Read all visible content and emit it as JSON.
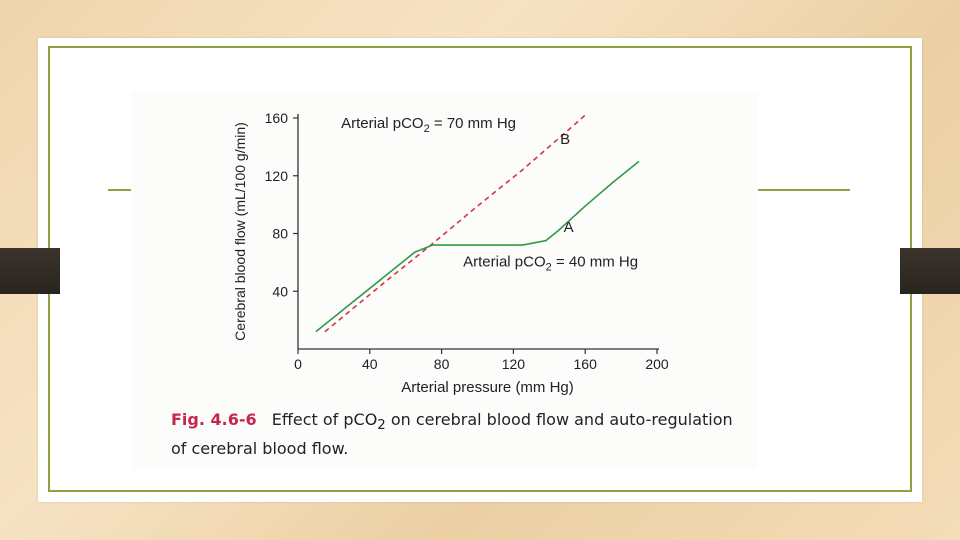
{
  "chart_data": {
    "type": "line",
    "title": "",
    "xlabel": "Arterial pressure (mm Hg)",
    "ylabel": "Cerebral blood flow (mL/100 g/min)",
    "xlim": [
      0,
      200
    ],
    "ylim": [
      0,
      160
    ],
    "x_ticks": [
      0,
      40,
      80,
      120,
      160,
      200
    ],
    "y_ticks": [
      40,
      80,
      120,
      160
    ],
    "grid": false,
    "series": [
      {
        "name": "B",
        "color": "#d6343f",
        "dash": true,
        "x": [
          15,
          50,
          75,
          100,
          125,
          150,
          160
        ],
        "y": [
          12,
          48,
          73,
          99,
          124,
          151,
          162
        ]
      },
      {
        "name": "A",
        "color": "#2e9a4b",
        "dash": false,
        "x": [
          10,
          30,
          50,
          65,
          75,
          100,
          125,
          138,
          145,
          160,
          175,
          190
        ],
        "y": [
          12,
          32,
          52,
          67,
          72,
          72,
          72,
          75,
          82,
          99,
          115,
          130
        ]
      }
    ],
    "annotations": [
      {
        "id": "label_b_sub",
        "text_pre": "Arterial pCO",
        "sub": "2",
        "text_post": " = 70 mm Hg",
        "x": 24,
        "y": 153
      },
      {
        "id": "letter_b",
        "text": "B",
        "x": 146,
        "y": 142
      },
      {
        "id": "letter_a",
        "text": "A",
        "x": 148,
        "y": 81
      },
      {
        "id": "label_a_sub",
        "text_pre": "Arterial pCO",
        "sub": "2",
        "text_post": " = 40 mm Hg",
        "x": 92,
        "y": 57
      }
    ]
  },
  "caption": {
    "fig_label": "Fig. 4.6-6",
    "text_pre": "Effect of pCO",
    "sub": "2",
    "text_post": " on cerebral blood flow and auto-regulation of cerebral blood flow."
  }
}
